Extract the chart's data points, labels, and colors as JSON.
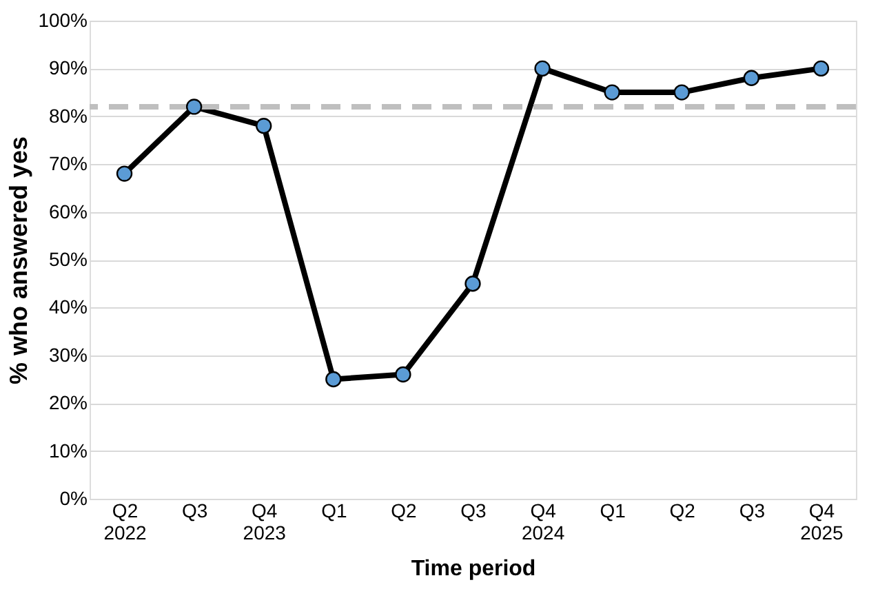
{
  "chart_data": {
    "type": "line",
    "xlabel": "Time period",
    "ylabel": "% who answered yes",
    "categories": [
      "Q2\n2022",
      "Q3",
      "Q4\n2023",
      "Q1",
      "Q2",
      "Q3",
      "Q4\n2024",
      "Q1",
      "Q2",
      "Q3",
      "Q4\n2025"
    ],
    "series": [
      {
        "color": "#5b9bd5",
        "values": [
          68,
          82,
          78,
          25,
          26,
          45,
          90,
          85,
          85,
          88,
          90
        ]
      }
    ],
    "ylim": [
      0,
      100
    ],
    "yticks": [
      {
        "value": 0,
        "label": "0%"
      },
      {
        "value": 10,
        "label": "10%"
      },
      {
        "value": 20,
        "label": "20%"
      },
      {
        "value": 30,
        "label": "30%"
      },
      {
        "value": 40,
        "label": "40%"
      },
      {
        "value": 50,
        "label": "50%"
      },
      {
        "value": 60,
        "label": "60%"
      },
      {
        "value": 70,
        "label": "70%"
      },
      {
        "value": 80,
        "label": "80%"
      },
      {
        "value": 90,
        "label": "90%"
      },
      {
        "value": 100,
        "label": "100%"
      }
    ],
    "ref_lines": [
      {
        "axis": "y",
        "value": 82,
        "color": "#bfbfbf",
        "line_style": "dashed"
      }
    ],
    "grid": "y",
    "marker": "circle",
    "line_style": "solid"
  }
}
